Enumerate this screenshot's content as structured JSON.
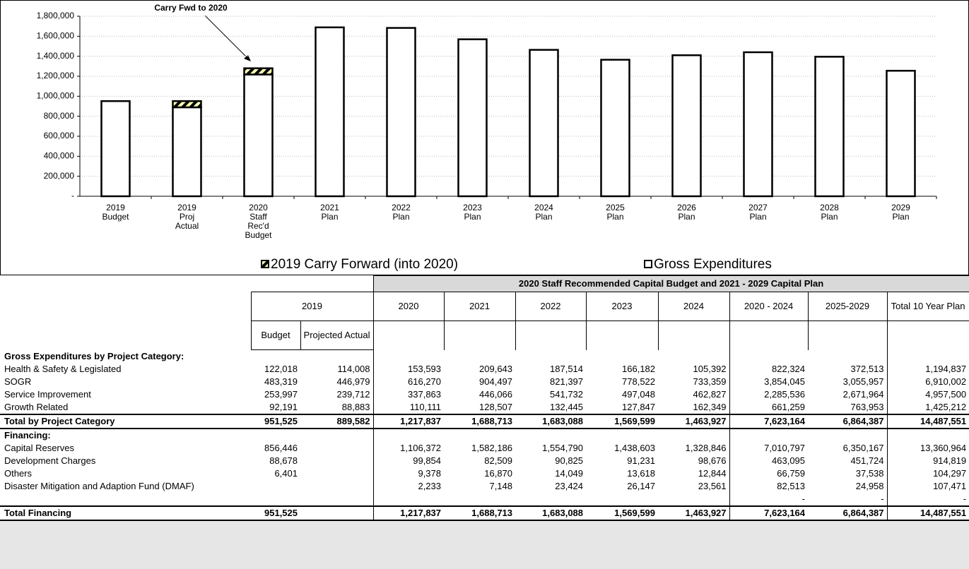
{
  "chart_data": {
    "type": "bar",
    "stacked": true,
    "grid": true,
    "annotation": "Carry Fwd to 2020",
    "categories": [
      "2019\nBudget",
      "2019\nProj\nActual",
      "2020\nStaff\nRec'd\nBudget",
      "2021\nPlan",
      "2022\nPlan",
      "2023\nPlan",
      "2024\nPlan",
      "2025\nPlan",
      "2026\nPlan",
      "2027\nPlan",
      "2028\nPlan",
      "2029\nPlan"
    ],
    "series": [
      {
        "name": "2019 Carry Forward (into 2020)",
        "color": "#ffffb3",
        "hatch": true,
        "values": [
          null,
          61943,
          61943,
          null,
          null,
          null,
          null,
          null,
          null,
          null,
          null,
          null
        ]
      },
      {
        "name": "Gross Expenditures",
        "color": "#ffffff",
        "values": [
          951525,
          889582,
          1217837,
          1688713,
          1683088,
          1569599,
          1463927,
          1365000,
          1410000,
          1440000,
          1395000,
          1255000
        ]
      }
    ],
    "ylim": [
      0,
      1800000
    ],
    "yticks": [
      {
        "value": 0,
        "label": "-"
      },
      {
        "value": 200000,
        "label": "200,000"
      },
      {
        "value": 400000,
        "label": "400,000"
      },
      {
        "value": 600000,
        "label": "600,000"
      },
      {
        "value": 800000,
        "label": "800,000"
      },
      {
        "value": 1000000,
        "label": "1,000,000"
      },
      {
        "value": 1200000,
        "label": "1,200,000"
      },
      {
        "value": 1400000,
        "label": "1,400,000"
      },
      {
        "value": 1600000,
        "label": "1,600,000"
      },
      {
        "value": 1800000,
        "label": "1,800,000"
      }
    ]
  },
  "table": {
    "banner": "2020 Staff Recommended Capital Budget and 2021 - 2029 Capital Plan",
    "header": [
      "2019",
      "2020",
      "2021",
      "2022",
      "2023",
      "2024",
      "2020 - 2024",
      "2025-2029",
      "Total 10 Year Plan"
    ],
    "subheader": [
      "Budget",
      "Projected Actual"
    ],
    "sections": [
      {
        "title": "Gross Expenditures by Project Category:",
        "rows": [
          {
            "label": "Health & Safety & Legislated",
            "cells": [
              "122,018",
              "114,008",
              "153,593",
              "209,643",
              "187,514",
              "166,182",
              "105,392",
              "822,324",
              "372,513",
              "1,194,837"
            ]
          },
          {
            "label": "SOGR",
            "cells": [
              "483,319",
              "446,979",
              "616,270",
              "904,497",
              "821,397",
              "778,522",
              "733,359",
              "3,854,045",
              "3,055,957",
              "6,910,002"
            ]
          },
          {
            "label": "Service Improvement",
            "cells": [
              "253,997",
              "239,712",
              "337,863",
              "446,066",
              "541,732",
              "497,048",
              "462,827",
              "2,285,536",
              "2,671,964",
              "4,957,500"
            ]
          },
          {
            "label": "Growth Related",
            "cells": [
              "92,191",
              "88,883",
              "110,111",
              "128,507",
              "132,445",
              "127,847",
              "162,349",
              "661,259",
              "763,953",
              "1,425,212"
            ]
          }
        ],
        "total": {
          "label": "Total by Project Category",
          "cells": [
            "951,525",
            "889,582",
            "1,217,837",
            "1,688,713",
            "1,683,088",
            "1,569,599",
            "1,463,927",
            "7,623,164",
            "6,864,387",
            "14,487,551"
          ]
        }
      },
      {
        "title": "Financing:",
        "rows": [
          {
            "label": "Capital Reserves",
            "cells": [
              "856,446",
              null,
              "1,106,372",
              "1,582,186",
              "1,554,790",
              "1,438,603",
              "1,328,846",
              "7,010,797",
              "6,350,167",
              "13,360,964"
            ]
          },
          {
            "label": "Development Charges",
            "cells": [
              "88,678",
              null,
              "99,854",
              "82,509",
              "90,825",
              "91,231",
              "98,676",
              "463,095",
              "451,724",
              "914,819"
            ]
          },
          {
            "label": "Others",
            "cells": [
              "6,401",
              null,
              "9,378",
              "16,870",
              "14,049",
              "13,618",
              "12,844",
              "66,759",
              "37,538",
              "104,297"
            ]
          },
          {
            "label": "Disaster Mitigation and Adaption Fund (DMAF)",
            "cells": [
              null,
              null,
              "2,233",
              "7,148",
              "23,424",
              "26,147",
              "23,561",
              "82,513",
              "24,958",
              "107,471"
            ]
          },
          {
            "label": null,
            "cells": [
              null,
              null,
              null,
              null,
              null,
              null,
              null,
              "-",
              "-",
              "-"
            ]
          }
        ],
        "total": {
          "label": "Total Financing",
          "cells": [
            "951,525",
            null,
            "1,217,837",
            "1,688,713",
            "1,683,088",
            "1,569,599",
            "1,463,927",
            "7,623,164",
            "6,864,387",
            "14,487,551"
          ]
        }
      }
    ]
  }
}
